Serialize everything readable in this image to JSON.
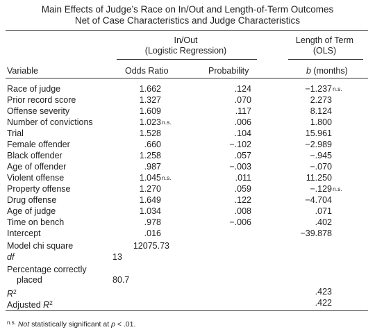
{
  "title": {
    "line1": "Main Effects of Judge’s Race on In/Out and Length-of-Term Outcomes",
    "line2": "Net of Case Characteristics and Judge Characteristics"
  },
  "headers": {
    "inout_line1": "In/Out",
    "inout_line2": "(Logistic Regression)",
    "length_line1": "Length of Term",
    "length_line2": "(OLS)",
    "variable": "Variable",
    "odds_ratio": "Odds Ratio",
    "probability": "Probability",
    "b_symbol": "b",
    "b_unit": " (months)"
  },
  "ns_mark": "n.s.",
  "rows": [
    {
      "var": "Race of judge",
      "odds": "1.662",
      "odds_ns": "",
      "prob": ".124",
      "len": "−1.237",
      "len_ns": "n.s."
    },
    {
      "var": "Prior record score",
      "odds": "1.327",
      "odds_ns": "",
      "prob": ".070",
      "len": "2.273",
      "len_ns": ""
    },
    {
      "var": "Offense severity",
      "odds": "1.609",
      "odds_ns": "",
      "prob": ".117",
      "len": "8.124",
      "len_ns": ""
    },
    {
      "var": "Number of convictions",
      "odds": "1.023",
      "odds_ns": "n.s.",
      "prob": ".006",
      "len": "1.800",
      "len_ns": ""
    },
    {
      "var": "Trial",
      "odds": "1.528",
      "odds_ns": "",
      "prob": ".104",
      "len": "15.961",
      "len_ns": ""
    },
    {
      "var": "Female offender",
      "odds": ".660",
      "odds_ns": "",
      "prob": "−.102",
      "len": "−2.989",
      "len_ns": ""
    },
    {
      "var": "Black offender",
      "odds": "1.258",
      "odds_ns": "",
      "prob": ".057",
      "len": "−.945",
      "len_ns": ""
    },
    {
      "var": "Age of offender",
      "odds": ".987",
      "odds_ns": "",
      "prob": "−.003",
      "len": "−.070",
      "len_ns": ""
    },
    {
      "var": "Violent offense",
      "odds": "1.045",
      "odds_ns": "n.s.",
      "prob": ".011",
      "len": "11.250",
      "len_ns": ""
    },
    {
      "var": "Property offense",
      "odds": "1.270",
      "odds_ns": "",
      "prob": ".059",
      "len": "−.129",
      "len_ns": "n.s."
    },
    {
      "var": "Drug offense",
      "odds": "1.649",
      "odds_ns": "",
      "prob": ".122",
      "len": "−4.704",
      "len_ns": ""
    },
    {
      "var": "Age of judge",
      "odds": "1.034",
      "odds_ns": "",
      "prob": ".008",
      "len": ".071",
      "len_ns": ""
    },
    {
      "var": "Time on bench",
      "odds": ".978",
      "odds_ns": "",
      "prob": "−.006",
      "len": ".402",
      "len_ns": ""
    },
    {
      "var": "Intercept",
      "odds": ".016",
      "odds_ns": "",
      "prob": "",
      "len": "−39.878",
      "len_ns": ""
    }
  ],
  "stats": {
    "chi_label": "Model chi square",
    "chi_value": "12075.73",
    "df_label": "df",
    "df_value": "13",
    "pct_label1": "Percentage correctly",
    "pct_label2": "placed",
    "pct_value": "80.7",
    "r2_label": "R",
    "r2_sup": "2",
    "r2_value": ".423",
    "adj_label": "Adjusted ",
    "adj_r": "R",
    "adj_sup": "2",
    "adj_value": ".422"
  },
  "footnote": {
    "mark": "n.s.",
    "text_italic": "Not",
    "text_rest": " statistically significant at ",
    "p_symbol": "p",
    "p_rest": " < .01."
  }
}
